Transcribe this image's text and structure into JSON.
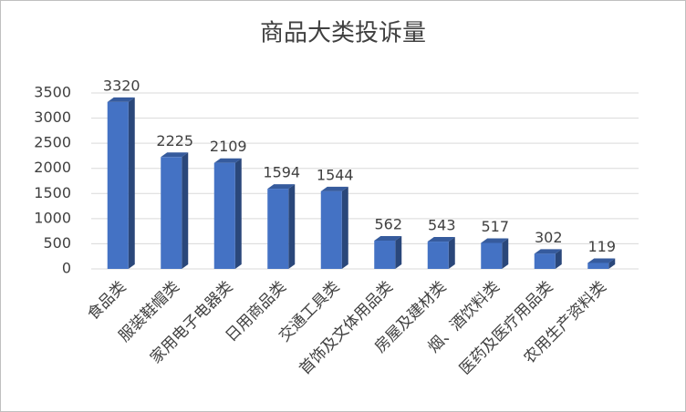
{
  "chart_data": {
    "type": "bar3d",
    "title": "商品大类投诉量",
    "categories": [
      "食品类",
      "服装鞋帽类",
      "家用电子电器类",
      "日用商品类",
      "交通工具类",
      "首饰及文体用品类",
      "房屋及建材类",
      "烟、酒饮料类",
      "医药及医疗用品类",
      "农用生产资料类"
    ],
    "values": [
      3320,
      2225,
      2109,
      1594,
      1544,
      562,
      543,
      517,
      302,
      119
    ],
    "color": "#4472c4",
    "ylim": [
      0,
      3500
    ],
    "yticks": [
      0,
      500,
      1000,
      1500,
      2000,
      2500,
      3000,
      3500
    ],
    "grid": true
  }
}
